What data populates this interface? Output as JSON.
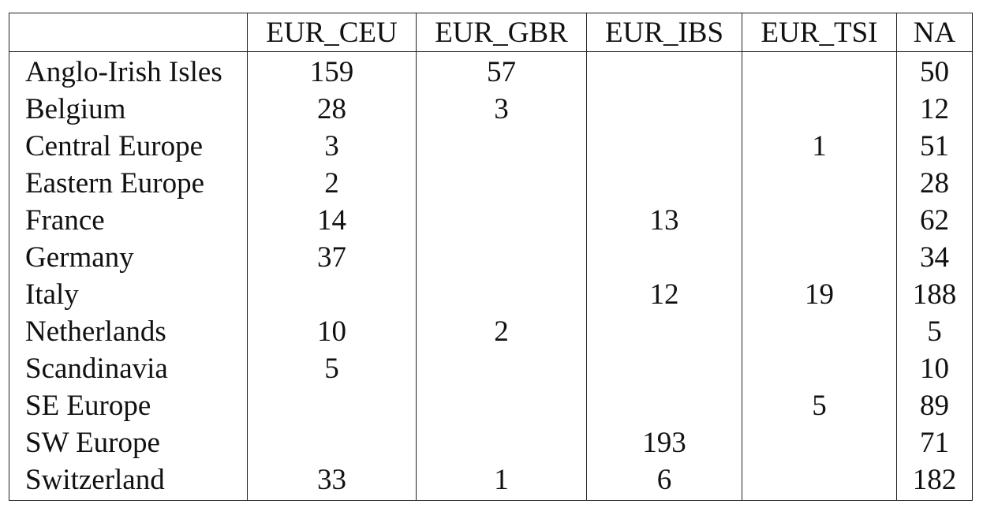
{
  "table": {
    "columns": [
      "",
      "EUR_CEU",
      "EUR_GBR",
      "EUR_IBS",
      "EUR_TSI",
      "NA"
    ],
    "rows": [
      [
        "Anglo-Irish Isles",
        "159",
        "57",
        "",
        "",
        "50"
      ],
      [
        "Belgium",
        "28",
        "3",
        "",
        "",
        "12"
      ],
      [
        "Central Europe",
        "3",
        "",
        "",
        "1",
        "51"
      ],
      [
        "Eastern Europe",
        "2",
        "",
        "",
        "",
        "28"
      ],
      [
        "France",
        "14",
        "",
        "13",
        "",
        "62"
      ],
      [
        "Germany",
        "37",
        "",
        "",
        "",
        "34"
      ],
      [
        "Italy",
        "",
        "",
        "12",
        "19",
        "188"
      ],
      [
        "Netherlands",
        "10",
        "2",
        "",
        "",
        "5"
      ],
      [
        "Scandinavia",
        "5",
        "",
        "",
        "",
        "10"
      ],
      [
        "SE Europe",
        "",
        "",
        "",
        "5",
        "89"
      ],
      [
        "SW Europe",
        "",
        "",
        "193",
        "",
        "71"
      ],
      [
        "Switzerland",
        "33",
        "1",
        "6",
        "",
        "182"
      ]
    ]
  },
  "chart_data": {
    "type": "table",
    "columns": [
      "",
      "EUR_CEU",
      "EUR_GBR",
      "EUR_IBS",
      "EUR_TSI",
      "NA"
    ],
    "rows": [
      [
        "Anglo-Irish Isles",
        159,
        57,
        null,
        null,
        50
      ],
      [
        "Belgium",
        28,
        3,
        null,
        null,
        12
      ],
      [
        "Central Europe",
        3,
        null,
        null,
        1,
        51
      ],
      [
        "Eastern Europe",
        2,
        null,
        null,
        null,
        28
      ],
      [
        "France",
        14,
        null,
        13,
        null,
        62
      ],
      [
        "Germany",
        37,
        null,
        null,
        null,
        34
      ],
      [
        "Italy",
        null,
        null,
        12,
        19,
        188
      ],
      [
        "Netherlands",
        10,
        2,
        null,
        null,
        5
      ],
      [
        "Scandinavia",
        5,
        null,
        null,
        null,
        10
      ],
      [
        "SE Europe",
        null,
        null,
        null,
        5,
        89
      ],
      [
        "SW Europe",
        null,
        null,
        193,
        null,
        71
      ],
      [
        "Switzerland",
        33,
        1,
        6,
        null,
        182
      ]
    ]
  }
}
